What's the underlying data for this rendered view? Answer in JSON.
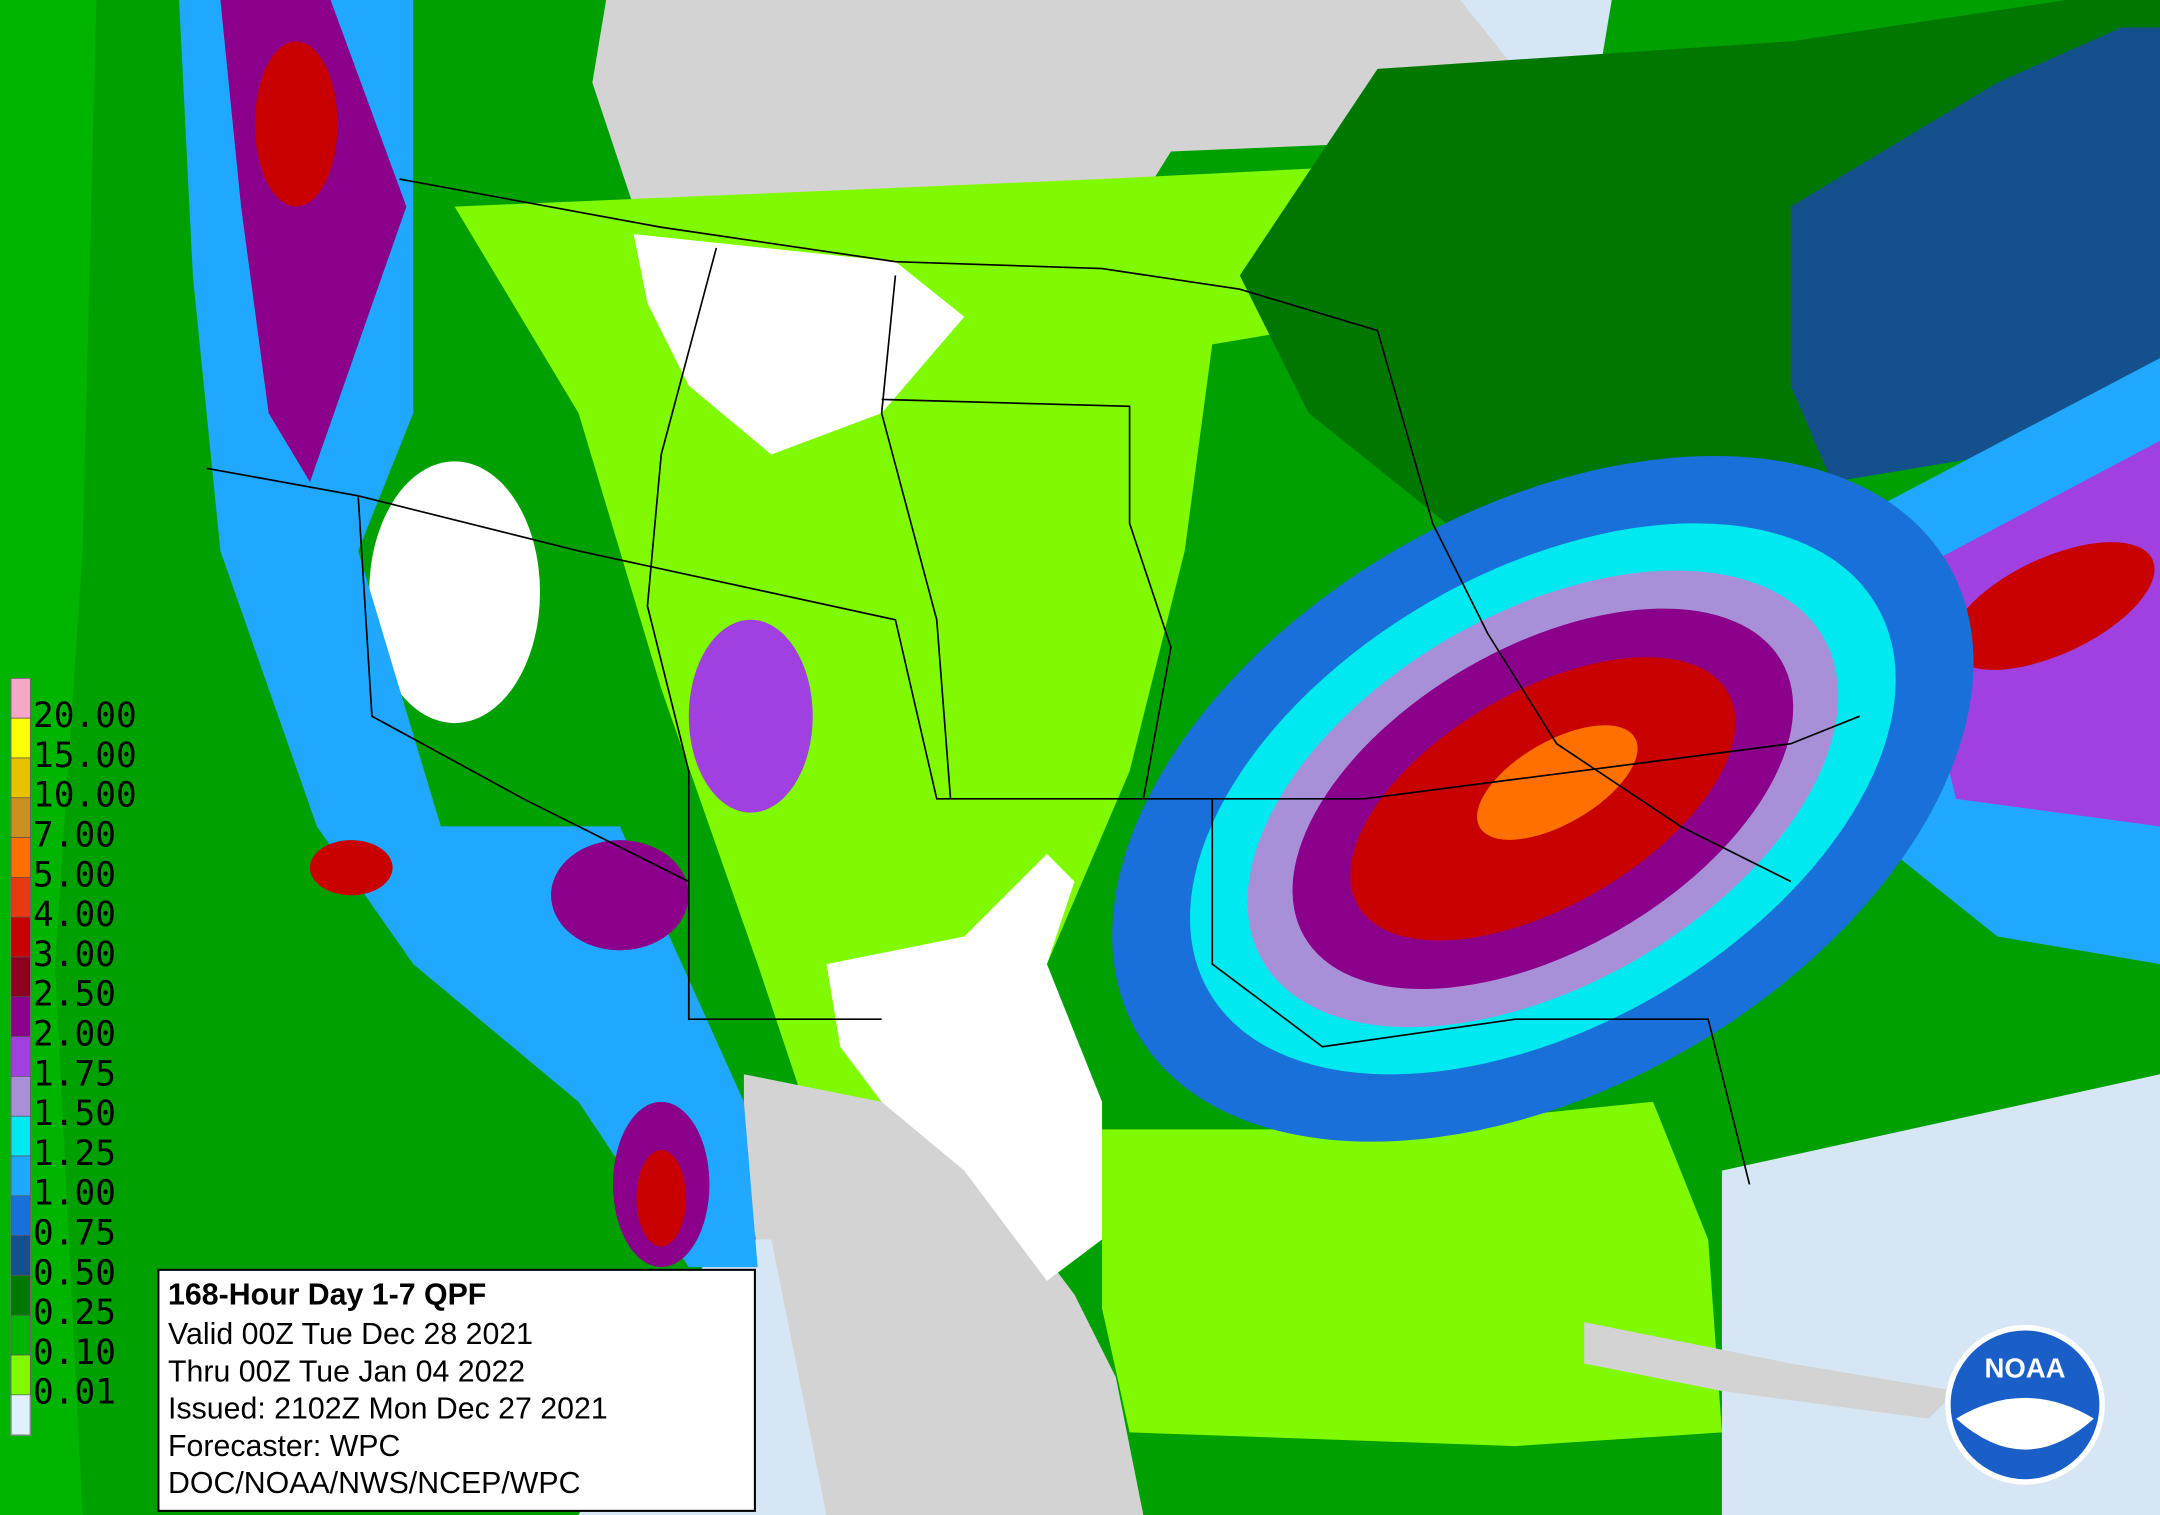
{
  "legend": {
    "items": [
      {
        "label": "20.00",
        "color": "#f4a8c8"
      },
      {
        "label": "15.00",
        "color": "#ffff00"
      },
      {
        "label": "10.00",
        "color": "#e6c200"
      },
      {
        "label": "7.00",
        "color": "#c8901e"
      },
      {
        "label": "5.00",
        "color": "#ff7000"
      },
      {
        "label": "4.00",
        "color": "#e83a10"
      },
      {
        "label": "3.00",
        "color": "#c80000"
      },
      {
        "label": "2.50",
        "color": "#8c0020"
      },
      {
        "label": "2.00",
        "color": "#8a008a"
      },
      {
        "label": "1.75",
        "color": "#a040e0"
      },
      {
        "label": "1.50",
        "color": "#a890d8"
      },
      {
        "label": "1.25",
        "color": "#00e8f0"
      },
      {
        "label": "1.00",
        "color": "#20a8ff"
      },
      {
        "label": "0.75",
        "color": "#1870d8"
      },
      {
        "label": "0.50",
        "color": "#14508c"
      },
      {
        "label": "0.25",
        "color": "#007800"
      },
      {
        "label": "0.10",
        "color": "#00b400"
      },
      {
        "label": "0.01",
        "color": "#80fa00"
      }
    ]
  },
  "info": {
    "title": "168-Hour Day 1-7 QPF",
    "lines": [
      "Valid 00Z Tue Dec 28 2021",
      "Thru 00Z Tue Jan 04 2022",
      "Issued: 2102Z Mon Dec 27 2021",
      "Forecaster: WPC",
      "DOC/NOAA/NWS/NCEP/WPC"
    ]
  },
  "logo": {
    "text": "NOAA"
  }
}
